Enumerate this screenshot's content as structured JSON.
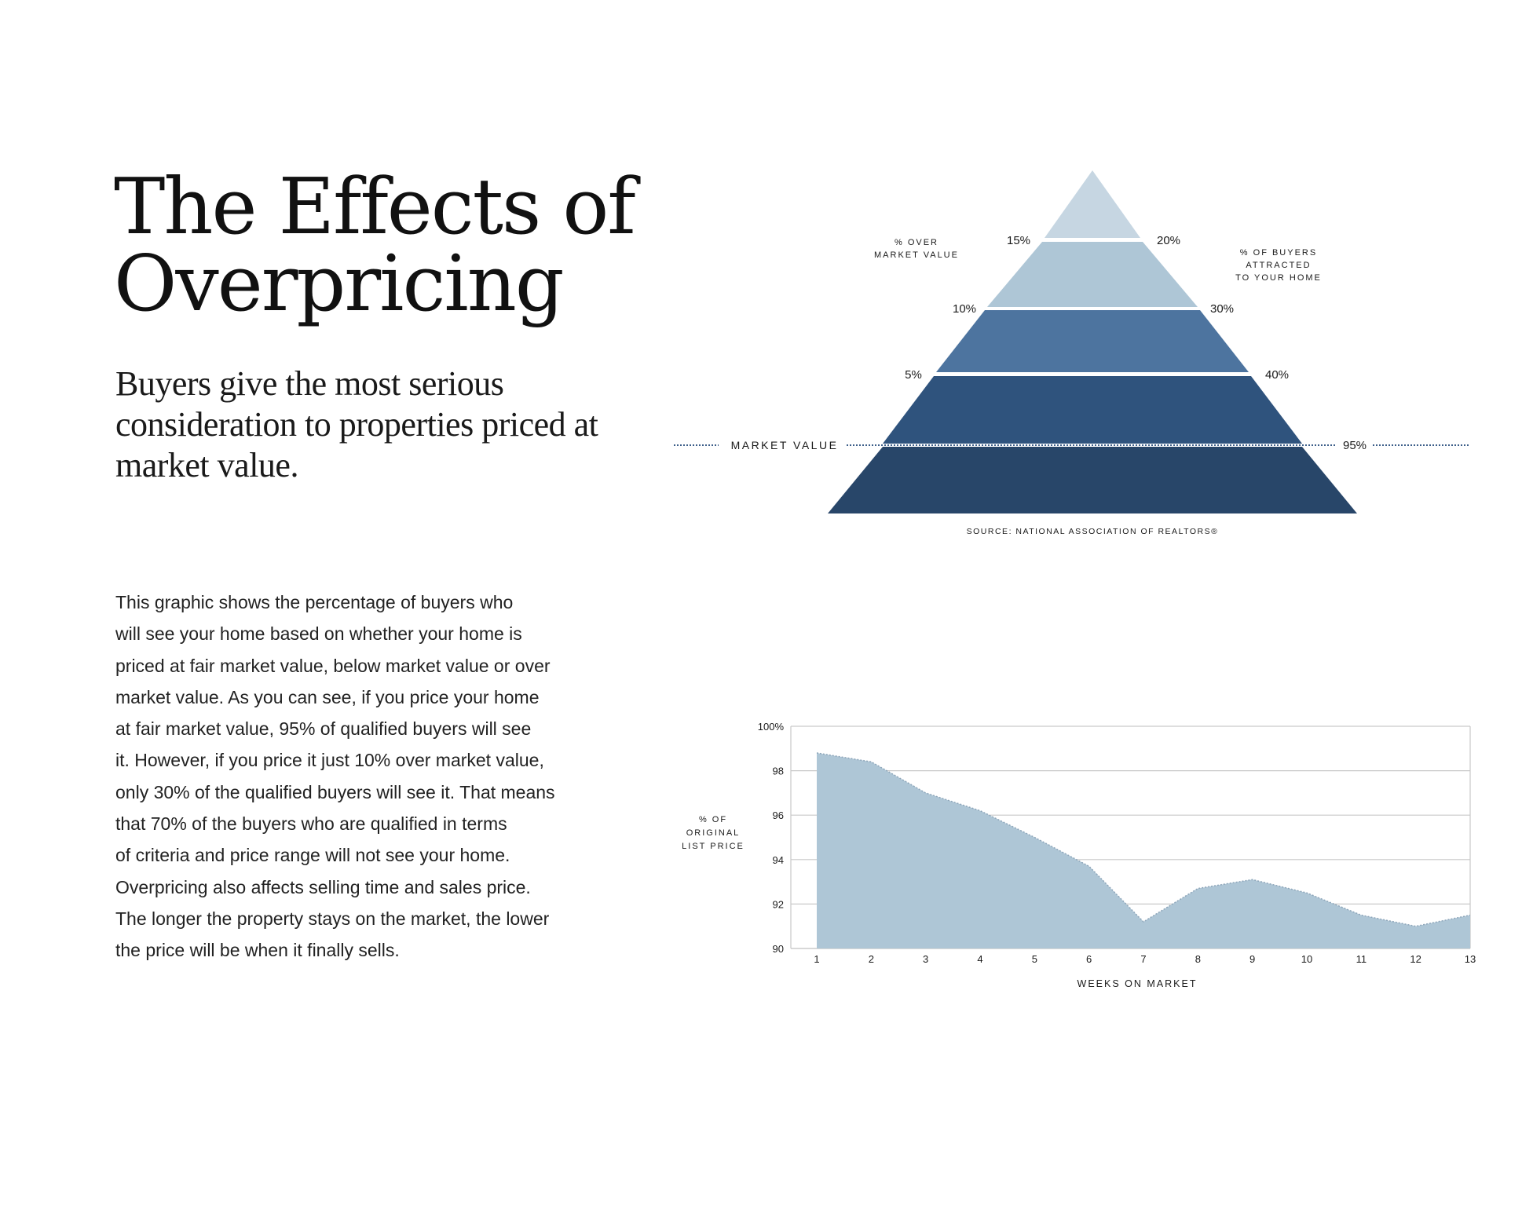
{
  "title": {
    "line1": "The Effects of",
    "line2": "Overpricing"
  },
  "subtitle": "Buyers give the most serious consideration to properties priced at market value.",
  "body_lines": [
    "This graphic shows the percentage of buyers who",
    "will see your home based on whether your home is",
    "priced at fair market value, below market value or over",
    "market value. As you can see, if you price your home",
    "at fair market value, 95% of qualified buyers will see",
    "it. However, if you price it just 10% over market value,",
    "only 30% of the qualified buyers will see it. That means",
    "that 70% of the buyers who are qualified in terms",
    "of criteria and price range will not see your home.",
    "Overpricing also affects selling time and sales price.",
    "The longer the property stays on the market, the lower",
    "the price will be when it finally sells."
  ],
  "colors": {
    "tier1": "#c6d6e2",
    "tier2": "#aec6d6",
    "tier3": "#4d749f",
    "tier4": "#2f537d",
    "tier5": "#284669",
    "area": "#aec6d6",
    "grid": "#c9c9c9",
    "dotted": "#3d5f8a"
  },
  "chart_data": [
    {
      "type": "pyramid",
      "left_axis_title": [
        "% OVER",
        "MARKET VALUE"
      ],
      "right_axis_title": [
        "% OF BUYERS",
        "ATTRACTED",
        "TO YOUR HOME"
      ],
      "levels": [
        {
          "over_market": "15%",
          "buyers_attracted": "20%"
        },
        {
          "over_market": "10%",
          "buyers_attracted": "30%"
        },
        {
          "over_market": "5%",
          "buyers_attracted": "40%"
        },
        {
          "over_market": "MARKET VALUE",
          "buyers_attracted": "95%"
        }
      ],
      "tiers": 5,
      "source": "SOURCE:  NATIONAL ASSOCIATION OF REALTORS®"
    },
    {
      "type": "area",
      "title": "",
      "xlabel": "WEEKS ON MARKET",
      "ylabel": [
        "% OF",
        "ORIGINAL",
        "LIST PRICE"
      ],
      "x": [
        1,
        2,
        3,
        4,
        5,
        6,
        7,
        8,
        9,
        10,
        11,
        12,
        13
      ],
      "values": [
        98.8,
        98.4,
        97.0,
        96.2,
        95.0,
        93.7,
        91.2,
        92.7,
        93.1,
        92.5,
        91.5,
        91.0,
        91.5
      ],
      "y_ticks": [
        "90",
        "92",
        "94",
        "96",
        "98",
        "100%"
      ],
      "x_ticks": [
        "1",
        "2",
        "3",
        "4",
        "5",
        "6",
        "7",
        "8",
        "9",
        "10",
        "11",
        "12",
        "13"
      ],
      "ylim": [
        90,
        100
      ],
      "grid": true
    }
  ]
}
